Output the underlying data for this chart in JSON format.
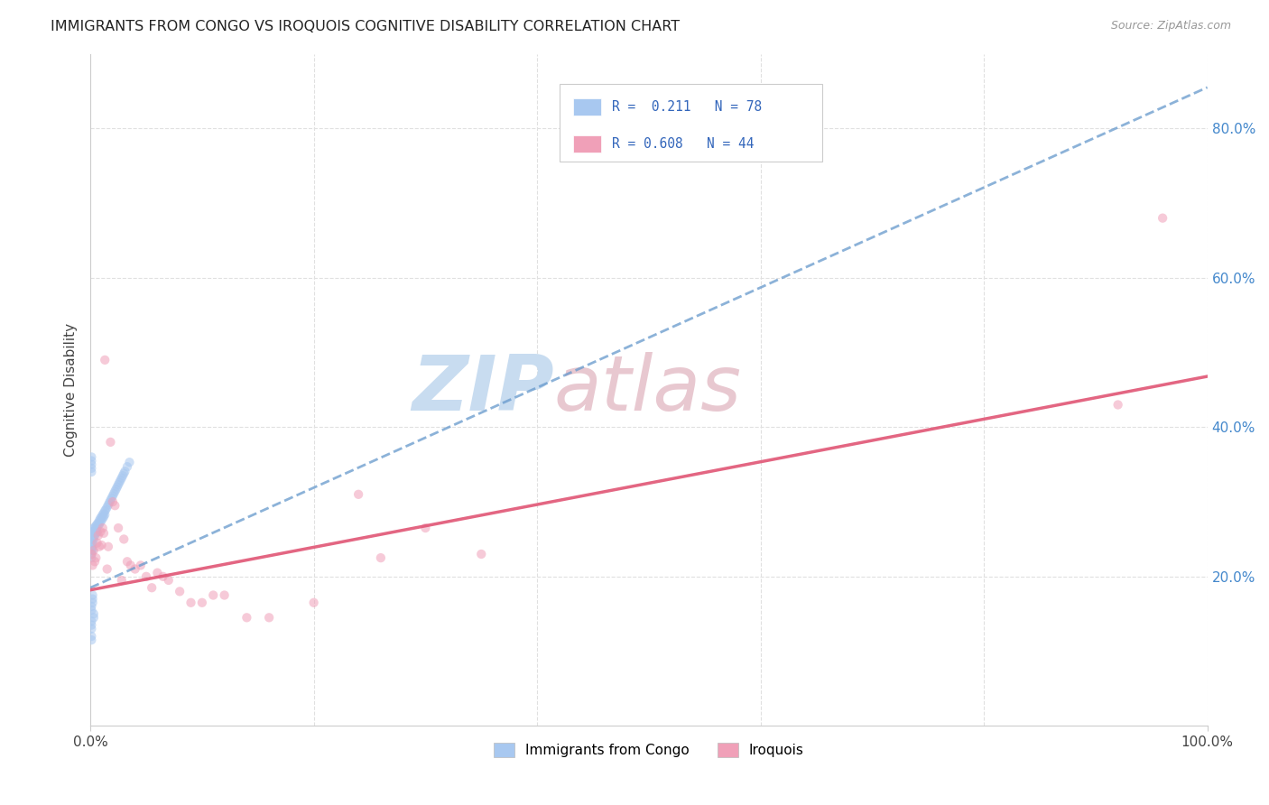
{
  "title": "IMMIGRANTS FROM CONGO VS IROQUOIS COGNITIVE DISABILITY CORRELATION CHART",
  "source": "Source: ZipAtlas.com",
  "ylabel": "Cognitive Disability",
  "xlim": [
    0.0,
    1.0
  ],
  "ylim": [
    0.0,
    0.9
  ],
  "ytick_right_labels": [
    "20.0%",
    "40.0%",
    "60.0%",
    "80.0%"
  ],
  "ytick_right_values": [
    0.2,
    0.4,
    0.6,
    0.8
  ],
  "legend_r1": "R =  0.211",
  "legend_n1": "N = 78",
  "legend_r2": "R = 0.608",
  "legend_n2": "N = 44",
  "color_blue": "#A8C8F0",
  "color_pink": "#F0A0B8",
  "trendline_blue_color": "#6699CC",
  "trendline_pink_color": "#E05575",
  "watermark_zip": "ZIP",
  "watermark_atlas": "atlas",
  "watermark_zip_color": "#C8DCF0",
  "watermark_atlas_color": "#E8C8D0",
  "grid_color": "#E0E0E0",
  "blue_scatter_x": [
    0.001,
    0.001,
    0.001,
    0.001,
    0.001,
    0.001,
    0.001,
    0.001,
    0.002,
    0.002,
    0.002,
    0.002,
    0.002,
    0.002,
    0.003,
    0.003,
    0.003,
    0.003,
    0.004,
    0.004,
    0.004,
    0.005,
    0.005,
    0.005,
    0.006,
    0.006,
    0.006,
    0.007,
    0.007,
    0.008,
    0.008,
    0.009,
    0.009,
    0.01,
    0.01,
    0.011,
    0.011,
    0.012,
    0.012,
    0.013,
    0.013,
    0.014,
    0.015,
    0.016,
    0.017,
    0.018,
    0.019,
    0.02,
    0.021,
    0.022,
    0.023,
    0.024,
    0.025,
    0.026,
    0.027,
    0.028,
    0.029,
    0.03,
    0.031,
    0.033,
    0.035,
    0.001,
    0.001,
    0.001,
    0.001,
    0.001,
    0.002,
    0.002,
    0.002,
    0.001,
    0.001,
    0.003,
    0.003,
    0.001,
    0.001,
    0.001,
    0.001,
    0.001
  ],
  "blue_scatter_y": [
    0.255,
    0.26,
    0.25,
    0.245,
    0.24,
    0.235,
    0.23,
    0.225,
    0.26,
    0.255,
    0.25,
    0.245,
    0.24,
    0.235,
    0.265,
    0.26,
    0.255,
    0.25,
    0.265,
    0.26,
    0.255,
    0.268,
    0.263,
    0.258,
    0.27,
    0.265,
    0.26,
    0.272,
    0.268,
    0.275,
    0.27,
    0.278,
    0.273,
    0.28,
    0.275,
    0.283,
    0.278,
    0.285,
    0.28,
    0.288,
    0.283,
    0.29,
    0.293,
    0.296,
    0.299,
    0.302,
    0.305,
    0.308,
    0.311,
    0.314,
    0.317,
    0.32,
    0.323,
    0.326,
    0.329,
    0.332,
    0.335,
    0.338,
    0.341,
    0.347,
    0.353,
    0.345,
    0.35,
    0.34,
    0.355,
    0.36,
    0.175,
    0.17,
    0.165,
    0.16,
    0.155,
    0.15,
    0.145,
    0.14,
    0.135,
    0.13,
    0.12,
    0.115
  ],
  "pink_scatter_x": [
    0.001,
    0.002,
    0.003,
    0.004,
    0.005,
    0.006,
    0.007,
    0.008,
    0.009,
    0.01,
    0.011,
    0.012,
    0.013,
    0.015,
    0.016,
    0.018,
    0.02,
    0.022,
    0.025,
    0.028,
    0.03,
    0.033,
    0.036,
    0.04,
    0.045,
    0.05,
    0.055,
    0.06,
    0.065,
    0.07,
    0.08,
    0.09,
    0.1,
    0.11,
    0.12,
    0.14,
    0.16,
    0.2,
    0.24,
    0.26,
    0.3,
    0.35,
    0.92,
    0.96
  ],
  "pink_scatter_y": [
    0.23,
    0.215,
    0.235,
    0.22,
    0.225,
    0.245,
    0.255,
    0.24,
    0.26,
    0.242,
    0.265,
    0.258,
    0.49,
    0.21,
    0.24,
    0.38,
    0.3,
    0.295,
    0.265,
    0.195,
    0.25,
    0.22,
    0.215,
    0.21,
    0.215,
    0.2,
    0.185,
    0.205,
    0.2,
    0.195,
    0.18,
    0.165,
    0.165,
    0.175,
    0.175,
    0.145,
    0.145,
    0.165,
    0.31,
    0.225,
    0.265,
    0.23,
    0.43,
    0.68
  ],
  "blue_trend_x": [
    0.0,
    1.0
  ],
  "blue_trend_y": [
    0.185,
    0.855
  ],
  "pink_trend_x": [
    0.0,
    1.0
  ],
  "pink_trend_y": [
    0.182,
    0.468
  ],
  "background_color": "#FFFFFF",
  "title_fontsize": 11.5,
  "axis_fontsize": 11,
  "scatter_size": 55,
  "scatter_alpha": 0.55
}
